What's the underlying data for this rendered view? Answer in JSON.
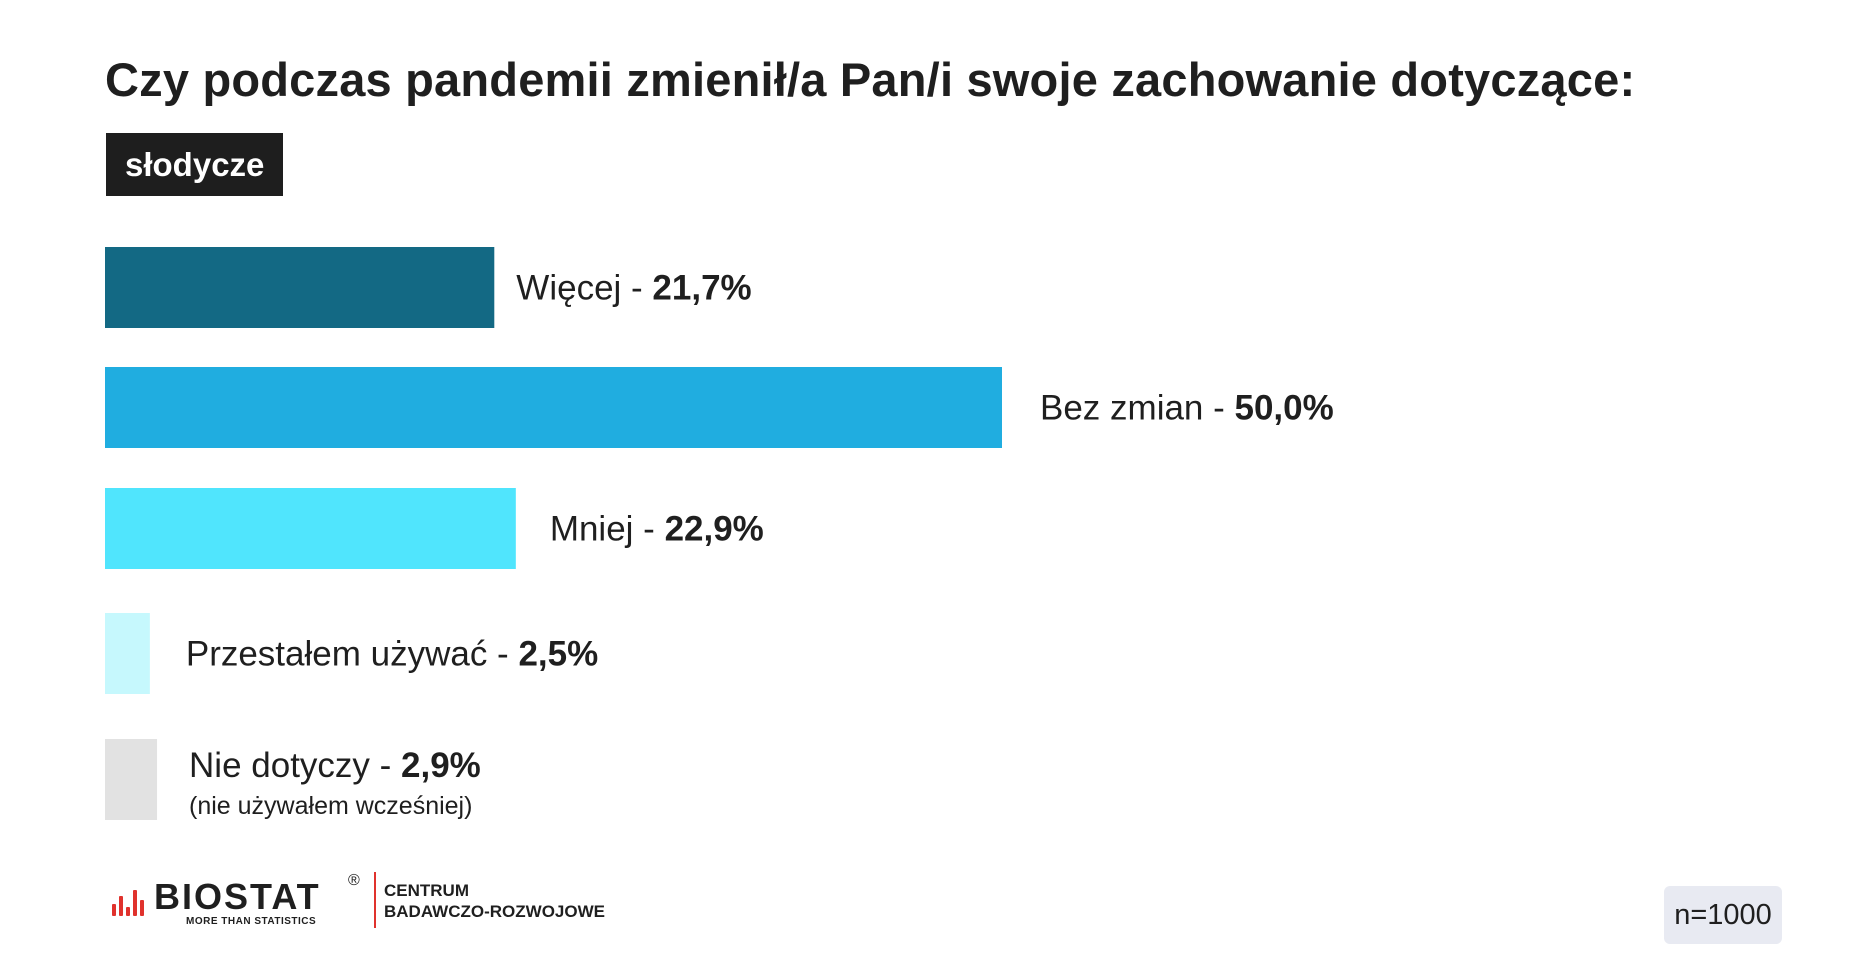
{
  "header": {
    "title": "Czy podczas pandemii zmienił/a Pan/i swoje zachowanie dotyczące:",
    "tag": "słodycze"
  },
  "chart_data": {
    "type": "bar",
    "orientation": "horizontal",
    "categories": [
      "Więcej",
      "Bez zmian",
      "Mniej",
      "Przestałem używać",
      "Nie dotyczy"
    ],
    "values": [
      21.7,
      50.0,
      22.9,
      2.5,
      2.9
    ],
    "value_labels": [
      "21,7%",
      "50,0%",
      "22,9%",
      "2,5%",
      "2,9%"
    ],
    "notes": [
      "",
      "",
      "",
      "",
      "(nie używałem wcześniej)"
    ],
    "colors": [
      "#136984",
      "#20ade0",
      "#50e5fd",
      "#c6f8fd",
      "#e2e2e2"
    ],
    "unit": "%",
    "xlim": [
      0,
      50
    ],
    "grid": false,
    "legend": "none"
  },
  "footer": {
    "brand_name": "BIOSTAT",
    "brand_registered": "®",
    "brand_tagline": "MORE THAN STATISTICS",
    "brand_sub_line1": "CENTRUM",
    "brand_sub_line2": "BADAWCZO-ROZWOJOWE",
    "brand_color": "#e0322d",
    "sample_size": "n=1000"
  }
}
